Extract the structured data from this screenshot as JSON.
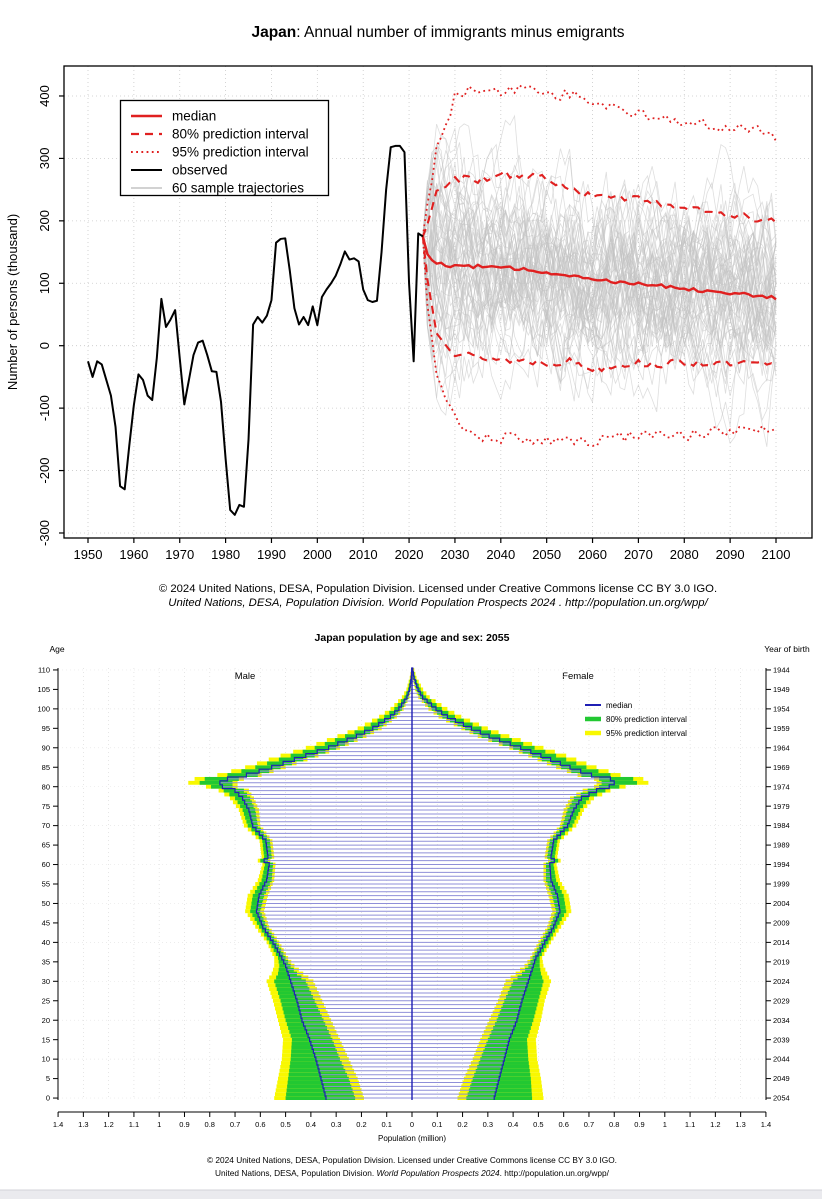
{
  "page": {
    "background": "#ffffff",
    "bottom_bar_color": "#eaeaee",
    "bottom_bar_border": "#d3d3d8"
  },
  "colors": {
    "red": "#e02020",
    "black": "#000000",
    "gray_trajectory": "#c3c3c3",
    "grid_gray": "#c9c9c9",
    "pyr_blue": "#1f1fb4",
    "pyr_hatch_blue": "#8f8fd8",
    "pyr_green": "#22c832",
    "pyr_yellow": "#f8f800",
    "pyr_grid": "#dcdcdc"
  },
  "migration_chart": {
    "title_bold": "Japan",
    "title_rest": ": Annual number of immigrants minus emigrants",
    "y_axis_label": "Number of persons (thousand)",
    "legend": [
      {
        "label": "median",
        "style": "solid-red"
      },
      {
        "label": "80% prediction interval",
        "style": "dashed-red"
      },
      {
        "label": "95% prediction interval",
        "style": "dotted-red"
      },
      {
        "label": "observed",
        "style": "solid-black"
      },
      {
        "label": "60 sample trajectories",
        "style": "solid-gray"
      }
    ],
    "footer_line1": "© 2024 United Nations, DESA, Population Division. Licensed under Creative Commons license CC BY 3.0 IGO.",
    "footer_line2": "United Nations, DESA, Population Division. World Population Prospects 2024 . http://population.un.org/wpp/"
  },
  "pyramid_chart": {
    "title": "Japan population by age and sex: 2055",
    "left_axis_label": "Age",
    "right_axis_label": "Year of birth",
    "male_label": "Male",
    "female_label": "Female",
    "x_axis_label": "Population (million)",
    "legend": [
      {
        "label": "median",
        "style": "solid-blue"
      },
      {
        "label": "80% prediction interval",
        "style": "solid-green"
      },
      {
        "label": "95% prediction interval",
        "style": "solid-yellow"
      }
    ],
    "footer_line1": "© 2024 United Nations, DESA, Population Division. Licensed under Creative Commons license CC BY 3.0 IGO.",
    "footer_line2_parts": [
      "United Nations, DESA, Population Division. ",
      "World Population Prospects 2024",
      ". http://population.un.org/wpp/"
    ]
  },
  "chart_data": [
    {
      "id": "net-migration",
      "type": "line",
      "title": "Japan: Annual number of immigrants minus emigrants",
      "xlabel": "",
      "ylabel": "Number of persons (thousand)",
      "xlim": [
        1950,
        2100
      ],
      "ylim": [
        -308,
        448
      ],
      "x_ticks": [
        1950,
        1960,
        1970,
        1980,
        1990,
        2000,
        2010,
        2020,
        2030,
        2040,
        2050,
        2060,
        2070,
        2080,
        2090,
        2100
      ],
      "y_ticks": [
        -300,
        -200,
        -100,
        0,
        100,
        200,
        300,
        400
      ],
      "grid": true,
      "observed": {
        "years": [
          1950,
          1951,
          1952,
          1953,
          1954,
          1955,
          1956,
          1957,
          1958,
          1959,
          1960,
          1961,
          1962,
          1963,
          1964,
          1965,
          1966,
          1967,
          1968,
          1969,
          1970,
          1971,
          1972,
          1973,
          1974,
          1975,
          1976,
          1977,
          1978,
          1979,
          1980,
          1981,
          1982,
          1983,
          1984,
          1985,
          1986,
          1987,
          1988,
          1989,
          1990,
          1991,
          1992,
          1993,
          1994,
          1995,
          1996,
          1997,
          1998,
          1999,
          2000,
          2001,
          2002,
          2003,
          2004,
          2005,
          2006,
          2007,
          2008,
          2009,
          2010,
          2011,
          2012,
          2013,
          2014,
          2015,
          2016,
          2017,
          2018,
          2019,
          2020,
          2021,
          2022,
          2023
        ],
        "values": [
          -25,
          -50,
          -25,
          -30,
          -55,
          -80,
          -130,
          -225,
          -230,
          -160,
          -95,
          -46,
          -55,
          -80,
          -87,
          -20,
          75,
          30,
          42,
          57,
          -20,
          -94,
          -55,
          -15,
          5,
          8,
          -15,
          -41,
          -42,
          -90,
          -181,
          -263,
          -271,
          -255,
          -258,
          -150,
          34,
          46,
          37,
          48,
          73,
          165,
          171,
          172,
          120,
          60,
          34,
          46,
          33,
          63,
          33,
          78,
          90,
          100,
          112,
          130,
          151,
          138,
          140,
          135,
          90,
          73,
          70,
          72,
          150,
          250,
          318,
          320,
          320,
          310,
          100,
          -25,
          180,
          175
        ]
      },
      "projection": {
        "anchor_year": 2023,
        "anchor_value": 175,
        "years": [
          2024,
          2026,
          2030,
          2035,
          2040,
          2045,
          2050,
          2055,
          2060,
          2065,
          2070,
          2075,
          2080,
          2085,
          2090,
          2095,
          2100
        ],
        "median": [
          148,
          131,
          128,
          127,
          125,
          122,
          118,
          113,
          107,
          103,
          100,
          96,
          92,
          88,
          85,
          80,
          76
        ],
        "pi80_upper": [
          195,
          248,
          268,
          266,
          276,
          271,
          268,
          254,
          237,
          240,
          236,
          229,
          221,
          214,
          209,
          204,
          197
        ],
        "pi80_lower": [
          105,
          25,
          -12,
          -18,
          -22,
          -24,
          -27,
          -25,
          -38,
          -30,
          -28,
          -30,
          -26,
          -28,
          -30,
          -29,
          -32
        ],
        "pi95_upper": [
          225,
          315,
          398,
          414,
          404,
          416,
          400,
          404,
          386,
          379,
          371,
          367,
          359,
          354,
          346,
          349,
          333
        ],
        "pi95_lower": [
          70,
          -45,
          -118,
          -143,
          -149,
          -147,
          -151,
          -149,
          -154,
          -147,
          -141,
          -143,
          -144,
          -140,
          -138,
          -136,
          -137
        ]
      },
      "sample_trajectories": {
        "count": 60,
        "seed": 11
      }
    },
    {
      "id": "population-pyramid",
      "type": "population_pyramid",
      "title": "Japan population by age and sex: 2055",
      "year": 2055,
      "unit": "million",
      "xlabel": "Population (million)",
      "xlim": [
        -1.4,
        1.4
      ],
      "x_ticks": [
        1.4,
        1.3,
        1.2,
        1.1,
        1,
        0.9,
        0.8,
        0.7,
        0.6,
        0.5,
        0.4,
        0.3,
        0.2,
        0.1,
        0,
        0.1,
        0.2,
        0.3,
        0.4,
        0.5,
        0.6,
        0.7,
        0.8,
        0.9,
        1,
        1.1,
        1.2,
        1.3,
        1.4
      ],
      "age_ticks": [
        0,
        5,
        10,
        15,
        20,
        25,
        30,
        35,
        40,
        45,
        50,
        55,
        60,
        65,
        70,
        75,
        80,
        85,
        90,
        95,
        100,
        105,
        110
      ],
      "birth_year_ticks": [
        2054,
        2049,
        2044,
        2039,
        2034,
        2029,
        2024,
        2019,
        2014,
        2009,
        2004,
        1999,
        1994,
        1989,
        1984,
        1979,
        1974,
        1969,
        1964,
        1959,
        1954,
        1949,
        1944
      ],
      "series": {
        "male": {
          "ages": [
            0,
            5,
            10,
            15,
            20,
            25,
            30,
            32,
            34,
            36,
            40,
            44,
            48,
            52,
            56,
            60,
            61,
            62,
            66,
            70,
            74,
            77,
            79,
            80,
            81,
            82,
            83,
            85,
            88,
            90,
            93,
            95,
            98,
            100,
            103,
            105,
            108,
            110
          ],
          "median": [
            0.34,
            0.36,
            0.38,
            0.405,
            0.435,
            0.455,
            0.48,
            0.49,
            0.5,
            0.515,
            0.55,
            0.59,
            0.615,
            0.605,
            0.575,
            0.565,
            0.585,
            0.57,
            0.578,
            0.63,
            0.645,
            0.67,
            0.7,
            0.75,
            0.76,
            0.73,
            0.655,
            0.555,
            0.42,
            0.33,
            0.22,
            0.155,
            0.085,
            0.052,
            0.02,
            0.01,
            0.003,
            0.001
          ],
          "pi80_lower": [
            0.225,
            0.25,
            0.285,
            0.315,
            0.35,
            0.385,
            0.42,
            0.455,
            0.48,
            0.5,
            0.535,
            0.575,
            0.6,
            0.585,
            0.555,
            0.55,
            0.57,
            0.555,
            0.562,
            0.61,
            0.62,
            0.64,
            0.665,
            0.71,
            0.71,
            0.685,
            0.61,
            0.52,
            0.385,
            0.3,
            0.195,
            0.135,
            0.07,
            0.04,
            0.014,
            0.006,
            0.001,
            0.0
          ],
          "pi80_upper": [
            0.5,
            0.49,
            0.48,
            0.475,
            0.5,
            0.52,
            0.545,
            0.53,
            0.525,
            0.53,
            0.565,
            0.605,
            0.64,
            0.63,
            0.595,
            0.582,
            0.6,
            0.585,
            0.592,
            0.65,
            0.67,
            0.7,
            0.745,
            0.795,
            0.84,
            0.82,
            0.73,
            0.62,
            0.48,
            0.385,
            0.265,
            0.19,
            0.11,
            0.07,
            0.03,
            0.016,
            0.006,
            0.002
          ],
          "pi95_lower": [
            0.19,
            0.215,
            0.25,
            0.285,
            0.32,
            0.355,
            0.39,
            0.43,
            0.465,
            0.49,
            0.525,
            0.565,
            0.585,
            0.57,
            0.545,
            0.54,
            0.56,
            0.545,
            0.552,
            0.6,
            0.605,
            0.625,
            0.645,
            0.69,
            0.69,
            0.665,
            0.595,
            0.5,
            0.37,
            0.285,
            0.18,
            0.12,
            0.06,
            0.033,
            0.01,
            0.004,
            0.001,
            0.0
          ],
          "pi95_upper": [
            0.545,
            0.53,
            0.515,
            0.51,
            0.53,
            0.55,
            0.575,
            0.555,
            0.545,
            0.545,
            0.575,
            0.62,
            0.66,
            0.65,
            0.61,
            0.592,
            0.61,
            0.595,
            0.603,
            0.665,
            0.685,
            0.72,
            0.765,
            0.815,
            0.885,
            0.86,
            0.77,
            0.66,
            0.52,
            0.42,
            0.295,
            0.215,
            0.13,
            0.085,
            0.04,
            0.022,
            0.009,
            0.004
          ]
        },
        "female": {
          "ages": [
            0,
            5,
            10,
            15,
            20,
            25,
            30,
            32,
            34,
            36,
            40,
            44,
            48,
            52,
            56,
            60,
            61,
            62,
            66,
            70,
            74,
            77,
            79,
            80,
            81,
            82,
            83,
            85,
            88,
            90,
            93,
            95,
            98,
            100,
            103,
            105,
            108,
            110
          ],
          "median": [
            0.325,
            0.345,
            0.365,
            0.385,
            0.415,
            0.435,
            0.46,
            0.47,
            0.48,
            0.49,
            0.525,
            0.56,
            0.585,
            0.575,
            0.55,
            0.545,
            0.563,
            0.55,
            0.56,
            0.615,
            0.64,
            0.67,
            0.73,
            0.78,
            0.8,
            0.785,
            0.71,
            0.625,
            0.51,
            0.43,
            0.305,
            0.235,
            0.14,
            0.095,
            0.042,
            0.024,
            0.008,
            0.003
          ],
          "pi80_lower": [
            0.215,
            0.24,
            0.27,
            0.3,
            0.335,
            0.365,
            0.4,
            0.435,
            0.46,
            0.477,
            0.51,
            0.545,
            0.57,
            0.555,
            0.53,
            0.53,
            0.548,
            0.535,
            0.545,
            0.595,
            0.615,
            0.64,
            0.695,
            0.74,
            0.75,
            0.74,
            0.67,
            0.59,
            0.475,
            0.4,
            0.275,
            0.21,
            0.12,
            0.078,
            0.032,
            0.017,
            0.004,
            0.001
          ],
          "pi80_upper": [
            0.475,
            0.47,
            0.46,
            0.455,
            0.48,
            0.5,
            0.52,
            0.51,
            0.505,
            0.505,
            0.54,
            0.575,
            0.61,
            0.6,
            0.57,
            0.56,
            0.578,
            0.565,
            0.575,
            0.635,
            0.665,
            0.7,
            0.765,
            0.82,
            0.89,
            0.875,
            0.785,
            0.69,
            0.57,
            0.485,
            0.35,
            0.275,
            0.17,
            0.118,
            0.056,
            0.034,
            0.013,
            0.006
          ],
          "pi95_lower": [
            0.18,
            0.205,
            0.24,
            0.27,
            0.305,
            0.34,
            0.37,
            0.41,
            0.445,
            0.468,
            0.5,
            0.535,
            0.555,
            0.54,
            0.52,
            0.52,
            0.538,
            0.525,
            0.535,
            0.585,
            0.6,
            0.625,
            0.675,
            0.72,
            0.73,
            0.72,
            0.655,
            0.57,
            0.46,
            0.385,
            0.26,
            0.195,
            0.105,
            0.065,
            0.025,
            0.012,
            0.002,
            0.0
          ],
          "pi95_upper": [
            0.52,
            0.51,
            0.495,
            0.49,
            0.51,
            0.525,
            0.55,
            0.535,
            0.52,
            0.515,
            0.55,
            0.59,
            0.63,
            0.62,
            0.585,
            0.572,
            0.588,
            0.575,
            0.585,
            0.65,
            0.68,
            0.72,
            0.785,
            0.845,
            0.935,
            0.915,
            0.825,
            0.73,
            0.61,
            0.52,
            0.385,
            0.3,
            0.195,
            0.14,
            0.07,
            0.044,
            0.018,
            0.009
          ]
        }
      }
    }
  ]
}
